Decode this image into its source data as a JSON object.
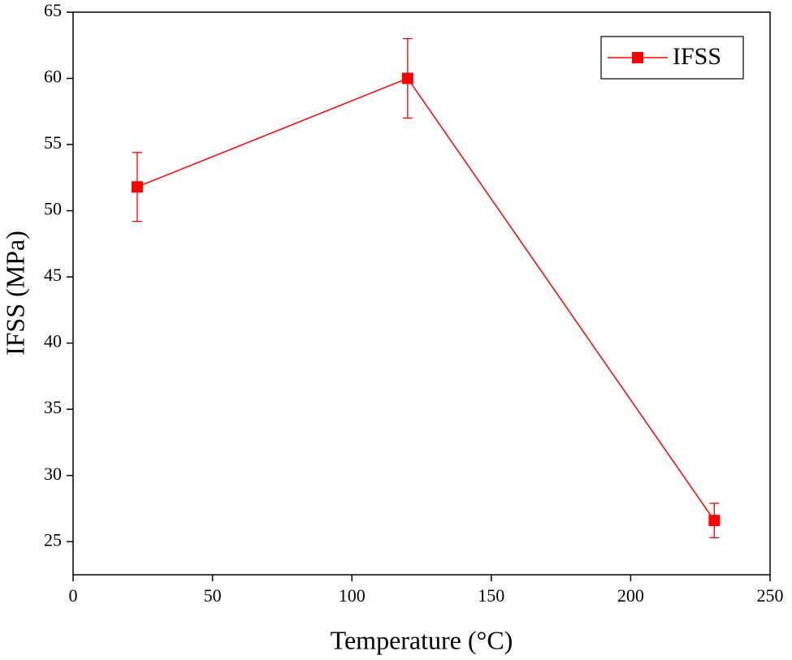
{
  "chart_data": {
    "type": "line",
    "x_label": "Temperature (°C)",
    "y_label": "IFSS (MPa)",
    "x": [
      23,
      120,
      230
    ],
    "series": [
      {
        "name": "IFSS",
        "color": "#ff0000",
        "values": [
          51.8,
          60,
          26.6
        ],
        "errors": [
          2.6,
          3,
          1.3
        ]
      }
    ],
    "xlim": [
      0,
      250
    ],
    "xticks": [
      0,
      50,
      100,
      150,
      200,
      250
    ],
    "ylim": [
      22.5,
      65
    ],
    "yticks": [
      25,
      30,
      35,
      40,
      45,
      50,
      55,
      60,
      65
    ],
    "legend": "upper right"
  }
}
